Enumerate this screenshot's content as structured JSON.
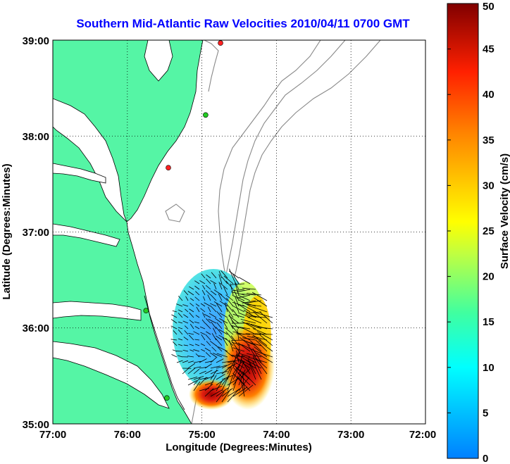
{
  "title": "Southern Mid-Atlantic Raw Velocities 2010/04/11 0700 GMT",
  "xlabel": "Longitude (Degrees:Minutes)",
  "ylabel": "Latitude (Degrees:Minutes)",
  "colorbar": {
    "label": "Surface Velocity (cm/s)",
    "ticks": [
      "0",
      "5",
      "10",
      "15",
      "20",
      "25",
      "30",
      "35",
      "40",
      "45",
      "50"
    ],
    "min": 0,
    "max": 50
  },
  "x_ticks": [
    "77:00",
    "76:00",
    "75:00",
    "74:00",
    "73:00",
    "72:00"
  ],
  "y_ticks": [
    "39:00",
    "38:00",
    "37:00",
    "36:00",
    "35:00"
  ],
  "colors": {
    "land": "#55f5a5",
    "title": "#0000ff",
    "coast": "#000000",
    "bathymetry": "#888888",
    "station_active": "#22cc22",
    "station_other": "#ff2222"
  },
  "chart_data": {
    "type": "map",
    "xlim": [
      -77,
      -72
    ],
    "ylim": [
      35,
      39
    ],
    "grid": true,
    "velocity_field": {
      "center": [
        -74.6,
        35.65
      ],
      "low_zone": {
        "center": [
          -75.1,
          35.9
        ],
        "speed_cm_s": 10
      },
      "high_zone": {
        "center": [
          -74.45,
          35.55
        ],
        "speed_cm_s": 45
      }
    },
    "stations": [
      {
        "lon": -74.75,
        "lat": 38.97,
        "type": "other"
      },
      {
        "lon": -74.95,
        "lat": 38.22,
        "type": "active"
      },
      {
        "lon": -75.45,
        "lat": 37.67,
        "type": "other"
      },
      {
        "lon": -75.75,
        "lat": 36.18,
        "type": "active"
      },
      {
        "lon": -75.47,
        "lat": 35.27,
        "type": "active"
      }
    ]
  }
}
